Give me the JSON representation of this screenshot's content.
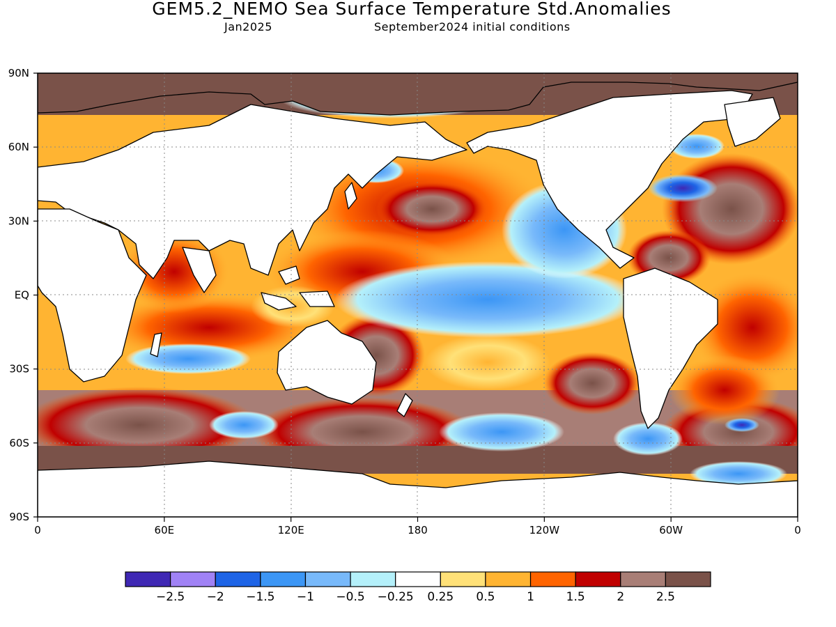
{
  "header": {
    "title": "GEM5.2_NEMO Sea Surface Temperature Std.Anomalies",
    "valid_month": "Jan2025",
    "init_conditions": "September2024 initial conditions"
  },
  "map": {
    "projection": "cylindrical equidistant",
    "lon_range": [
      0,
      360
    ],
    "lat_range": [
      -90,
      90
    ],
    "lat_ticks": [
      {
        "label": "90N",
        "lat": 90
      },
      {
        "label": "60N",
        "lat": 60
      },
      {
        "label": "30N",
        "lat": 30
      },
      {
        "label": "EQ",
        "lat": 0
      },
      {
        "label": "30S",
        "lat": -30
      },
      {
        "label": "60S",
        "lat": -60
      },
      {
        "label": "90S",
        "lat": -90
      }
    ],
    "lon_ticks": [
      {
        "label": "0",
        "lon": 0
      },
      {
        "label": "60E",
        "lon": 60
      },
      {
        "label": "120E",
        "lon": 120
      },
      {
        "label": "180",
        "lon": 180
      },
      {
        "label": "120W",
        "lon": 240
      },
      {
        "label": "60W",
        "lon": 300
      },
      {
        "label": "0",
        "lon": 360
      }
    ],
    "gridlines": "dotted"
  },
  "colorbar": {
    "colors": [
      "#3f28b4",
      "#a082f5",
      "#1e64e6",
      "#3c96f5",
      "#78b9fa",
      "#b4f0fa",
      "#ffffff",
      "#ffe178",
      "#ffb432",
      "#ff6400",
      "#c00000",
      "#a87e76",
      "#7a5249"
    ],
    "labels": [
      "−2.5",
      "−2",
      "−1.5",
      "−1",
      "−0.5",
      "−0.25",
      "0.25",
      "0.5",
      "1",
      "1.5",
      "2",
      "2.5"
    ]
  },
  "land_color": "#ffffff",
  "coastline_color": "#000000"
}
